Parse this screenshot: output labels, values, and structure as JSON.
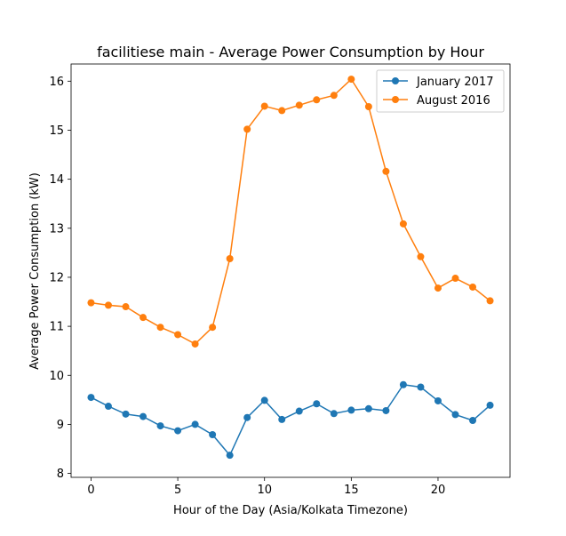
{
  "chart_data": {
    "type": "line",
    "title": "facilitiese main - Average Power Consumption by Hour",
    "xlabel": "Hour of the Day (Asia/Kolkata Timezone)",
    "ylabel": "Average Power Consumption (kW)",
    "xlim": [
      -1.15,
      24.15
    ],
    "ylim": [
      7.92,
      16.35
    ],
    "x_ticks": [
      0,
      5,
      10,
      15,
      20
    ],
    "y_ticks": [
      8,
      9,
      10,
      11,
      12,
      13,
      14,
      15,
      16
    ],
    "grid": false,
    "legend_position": "top-right",
    "x": [
      0,
      1,
      2,
      3,
      4,
      5,
      6,
      7,
      8,
      9,
      10,
      11,
      12,
      13,
      14,
      15,
      16,
      17,
      18,
      19,
      20,
      21,
      22,
      23
    ],
    "series": [
      {
        "name": "January 2017",
        "color": "#1f77b4",
        "marker": "circle",
        "values": [
          9.55,
          9.37,
          9.21,
          9.16,
          8.97,
          8.87,
          9.0,
          8.79,
          8.37,
          9.14,
          9.49,
          9.1,
          9.27,
          9.42,
          9.22,
          9.29,
          9.32,
          9.28,
          9.81,
          9.76,
          9.48,
          9.2,
          9.08,
          9.39
        ]
      },
      {
        "name": "August 2016",
        "color": "#ff7f0e",
        "marker": "circle",
        "values": [
          11.48,
          11.43,
          11.4,
          11.18,
          10.98,
          10.83,
          10.64,
          10.98,
          12.38,
          15.02,
          15.49,
          15.4,
          15.51,
          15.62,
          15.71,
          16.04,
          15.48,
          14.16,
          13.09,
          12.42,
          11.78,
          11.98,
          11.8,
          11.52
        ]
      }
    ]
  }
}
